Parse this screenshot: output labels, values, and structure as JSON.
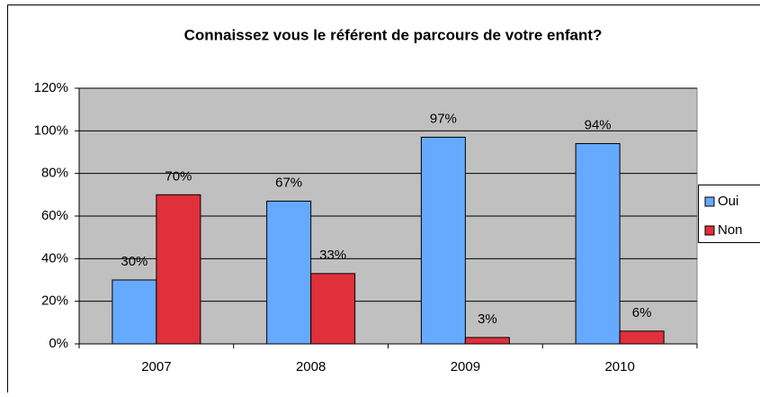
{
  "chart_data": {
    "type": "bar",
    "title": "Connaissez vous le référent de parcours de votre enfant?",
    "categories": [
      "2007",
      "2008",
      "2009",
      "2010"
    ],
    "series": [
      {
        "name": "Oui",
        "color": "#66aaff",
        "values": [
          30,
          67,
          97,
          94
        ],
        "value_labels": [
          "30%",
          "67%",
          "97%",
          "94%"
        ]
      },
      {
        "name": "Non",
        "color": "#e0303a",
        "values": [
          70,
          33,
          3,
          6
        ],
        "value_labels": [
          "70%",
          "33%",
          "3%",
          "6%"
        ]
      }
    ],
    "ylim": [
      0,
      120
    ],
    "yticks": [
      {
        "value": 0,
        "label": "0%"
      },
      {
        "value": 20,
        "label": "20%"
      },
      {
        "value": 40,
        "label": "40%"
      },
      {
        "value": 60,
        "label": "60%"
      },
      {
        "value": 80,
        "label": "80%"
      },
      {
        "value": 100,
        "label": "100%"
      },
      {
        "value": 120,
        "label": "120%"
      }
    ],
    "grid": true,
    "legend": "right"
  }
}
